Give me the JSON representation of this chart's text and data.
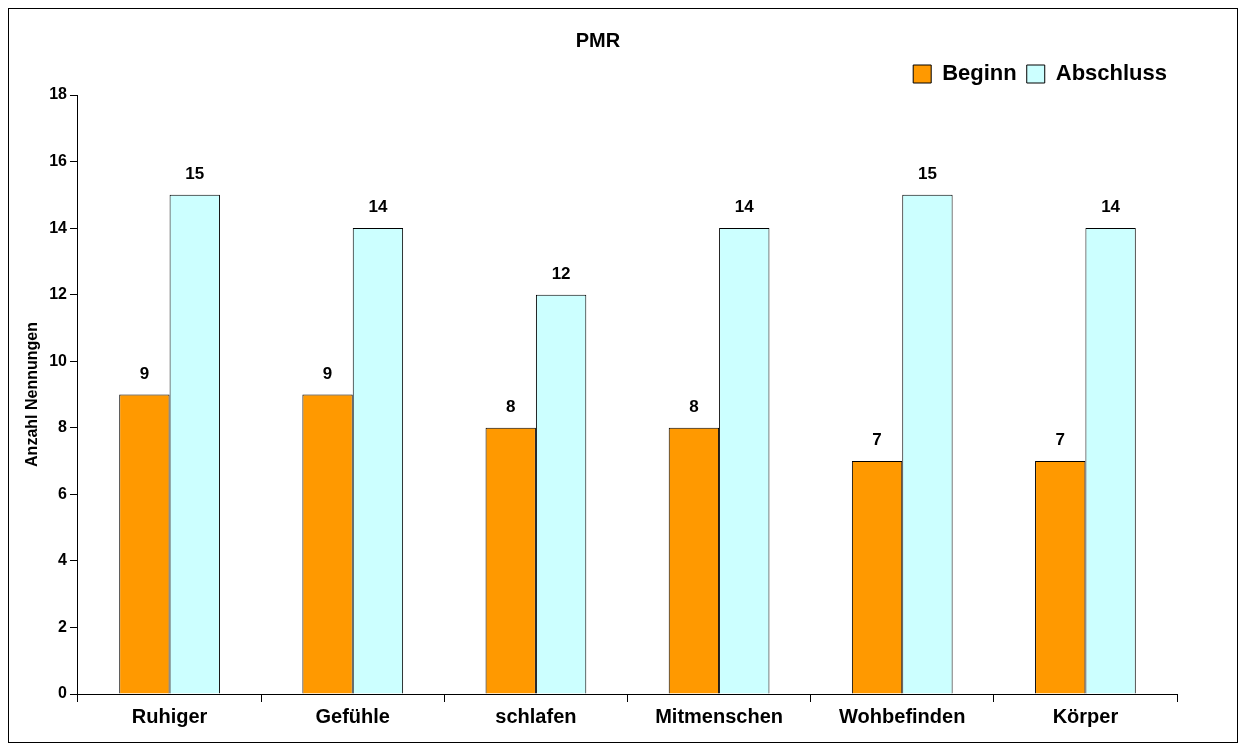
{
  "chart_data": {
    "type": "bar",
    "title": "PMR",
    "ylabel": "Anzahl Nennungen",
    "categories": [
      "Ruhiger",
      "Gefühle",
      "schlafen",
      "Mitmenschen",
      "Wohbefinden",
      "Körper"
    ],
    "series": [
      {
        "name": "Beginn",
        "color": "#ff9900",
        "values": [
          9,
          9,
          8,
          8,
          7,
          7
        ]
      },
      {
        "name": "Abschluss",
        "color": "#ccffff",
        "values": [
          15,
          14,
          12,
          14,
          15,
          14
        ]
      }
    ],
    "ylim": [
      0,
      18
    ],
    "yticks": [
      0,
      2,
      4,
      6,
      8,
      10,
      12,
      14,
      16,
      18
    ],
    "grid": false,
    "legend": "top right",
    "data_labels": true
  }
}
